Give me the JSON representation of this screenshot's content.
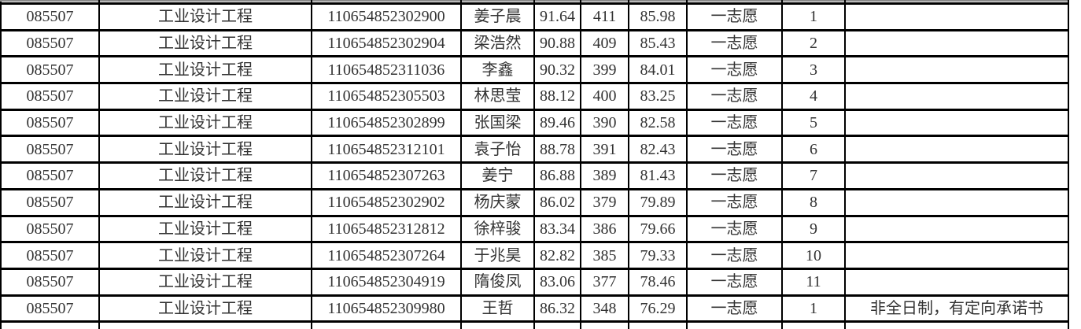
{
  "page": {
    "background_color": "#ffffff",
    "grid_border_color": "#000000",
    "text_color": "#333333",
    "cut_edge_border_color": "#8a8a8a"
  },
  "table": {
    "columns": [
      "code",
      "major",
      "exam-number",
      "name",
      "score-1",
      "score-2",
      "score-3",
      "volunteer",
      "rank",
      "remark"
    ],
    "rows": [
      [
        "085507",
        "工业设计工程",
        "110654852302900",
        "姜子晨",
        "91.64",
        "411",
        "85.98",
        "一志愿",
        "1",
        ""
      ],
      [
        "085507",
        "工业设计工程",
        "110654852302904",
        "梁浩然",
        "90.88",
        "409",
        "85.43",
        "一志愿",
        "2",
        ""
      ],
      [
        "085507",
        "工业设计工程",
        "110654852311036",
        "李鑫",
        "90.32",
        "399",
        "84.01",
        "一志愿",
        "3",
        ""
      ],
      [
        "085507",
        "工业设计工程",
        "110654852305503",
        "林思莹",
        "88.12",
        "400",
        "83.25",
        "一志愿",
        "4",
        ""
      ],
      [
        "085507",
        "工业设计工程",
        "110654852302899",
        "张国梁",
        "89.46",
        "390",
        "82.58",
        "一志愿",
        "5",
        ""
      ],
      [
        "085507",
        "工业设计工程",
        "110654852312101",
        "袁子怡",
        "88.78",
        "391",
        "82.43",
        "一志愿",
        "6",
        ""
      ],
      [
        "085507",
        "工业设计工程",
        "110654852307263",
        "姜宁",
        "86.88",
        "389",
        "81.43",
        "一志愿",
        "7",
        ""
      ],
      [
        "085507",
        "工业设计工程",
        "110654852302902",
        "杨庆蒙",
        "86.02",
        "379",
        "79.89",
        "一志愿",
        "8",
        ""
      ],
      [
        "085507",
        "工业设计工程",
        "110654852312812",
        "徐梓骏",
        "83.34",
        "386",
        "79.66",
        "一志愿",
        "9",
        ""
      ],
      [
        "085507",
        "工业设计工程",
        "110654852307264",
        "于兆昊",
        "82.82",
        "385",
        "79.33",
        "一志愿",
        "10",
        ""
      ],
      [
        "085507",
        "工业设计工程",
        "110654852304919",
        "隋俊凤",
        "83.06",
        "377",
        "78.46",
        "一志愿",
        "11",
        ""
      ],
      [
        "085507",
        "工业设计工程",
        "110654852309980",
        "王哲",
        "86.32",
        "348",
        "76.29",
        "一志愿",
        "1",
        "非全日制，有定向承诺书"
      ]
    ]
  }
}
